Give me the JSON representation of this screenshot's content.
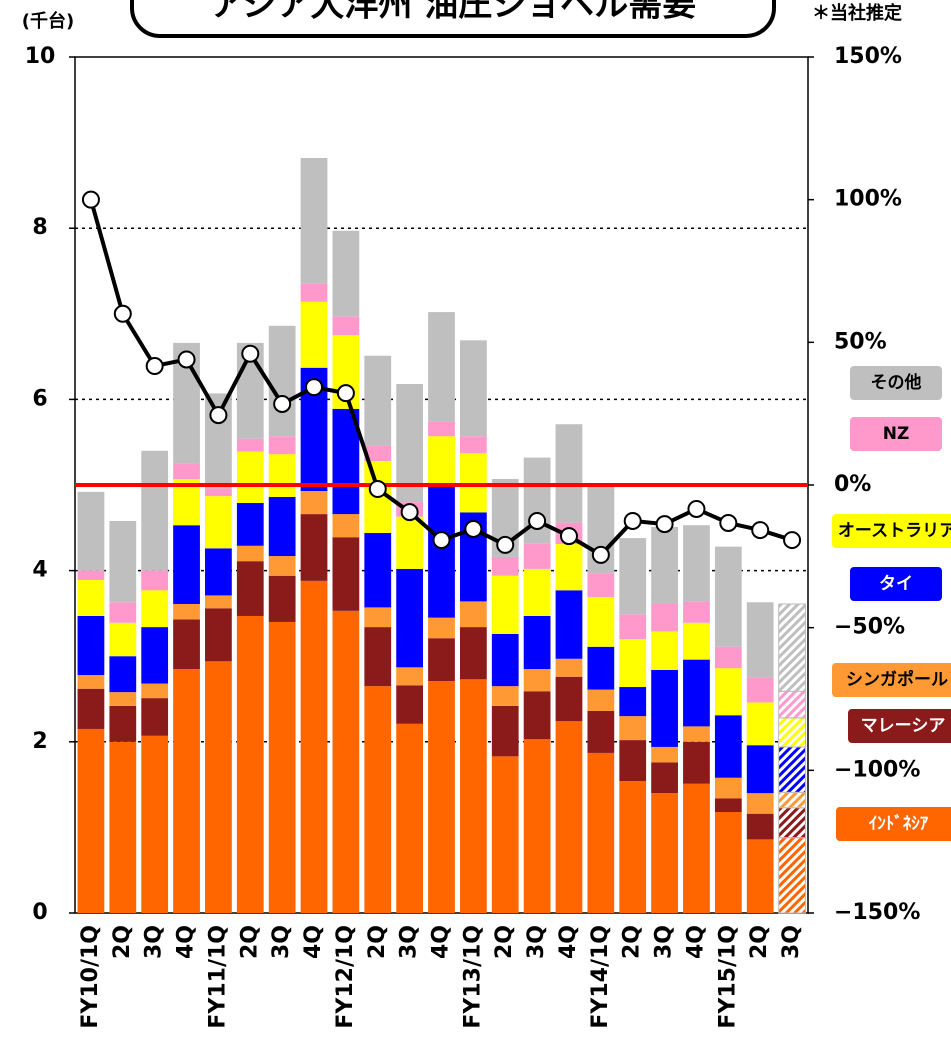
{
  "chart_data": {
    "type": "stacked_bar_line",
    "title": "アジア大洋州 油圧ショベル需要",
    "y_unit_label": "(千台)",
    "note": "＊当社推定",
    "categories": [
      "FY10/1Q",
      "2Q",
      "3Q",
      "4Q",
      "FY11/1Q",
      "2Q",
      "3Q",
      "4Q",
      "FY12/1Q",
      "2Q",
      "3Q",
      "4Q",
      "FY13/1Q",
      "2Q",
      "3Q",
      "4Q",
      "FY14/1Q",
      "2Q",
      "3Q",
      "4Q",
      "FY15/1Q",
      "2Q",
      "3Q"
    ],
    "series": [
      {
        "name": "ｲﾝﾄﾞﾈｼｱ",
        "color": "#ff6600",
        "values": [
          2.15,
          2.0,
          2.07,
          2.85,
          2.94,
          3.47,
          3.4,
          3.88,
          3.53,
          2.65,
          2.21,
          2.71,
          2.73,
          1.83,
          2.03,
          2.24,
          1.87,
          1.54,
          1.4,
          1.51,
          1.18,
          0.86,
          0.88
        ]
      },
      {
        "name": "マレーシア",
        "color": "#8b1a1a",
        "values": [
          0.47,
          0.42,
          0.44,
          0.58,
          0.62,
          0.64,
          0.54,
          0.78,
          0.86,
          0.69,
          0.45,
          0.5,
          0.61,
          0.59,
          0.56,
          0.52,
          0.49,
          0.48,
          0.36,
          0.49,
          0.16,
          0.3,
          0.35
        ]
      },
      {
        "name": "シンガポール",
        "color": "#ff9933",
        "values": [
          0.16,
          0.16,
          0.17,
          0.18,
          0.15,
          0.18,
          0.23,
          0.27,
          0.27,
          0.23,
          0.21,
          0.24,
          0.3,
          0.23,
          0.26,
          0.21,
          0.25,
          0.28,
          0.18,
          0.18,
          0.24,
          0.24,
          0.18
        ]
      },
      {
        "name": "タイ",
        "color": "#0000ff",
        "values": [
          0.69,
          0.42,
          0.66,
          0.92,
          0.55,
          0.5,
          0.69,
          1.44,
          1.23,
          0.87,
          1.15,
          1.53,
          1.04,
          0.61,
          0.62,
          0.8,
          0.5,
          0.34,
          0.9,
          0.78,
          0.73,
          0.56,
          0.53
        ]
      },
      {
        "name": "オーストラリア",
        "color": "#ffff00",
        "values": [
          0.42,
          0.39,
          0.43,
          0.54,
          0.61,
          0.6,
          0.5,
          0.77,
          0.86,
          0.84,
          0.61,
          0.59,
          0.69,
          0.68,
          0.55,
          0.54,
          0.58,
          0.56,
          0.45,
          0.43,
          0.55,
          0.5,
          0.34
        ]
      },
      {
        "name": "NZ",
        "color": "#ff99cc",
        "values": [
          0.11,
          0.24,
          0.23,
          0.18,
          0.09,
          0.15,
          0.21,
          0.21,
          0.22,
          0.18,
          0.17,
          0.17,
          0.2,
          0.22,
          0.3,
          0.25,
          0.28,
          0.29,
          0.32,
          0.25,
          0.25,
          0.29,
          0.31
        ]
      },
      {
        "name": "その他",
        "color": "#bfbfbf",
        "values": [
          0.92,
          0.95,
          1.4,
          1.41,
          1.11,
          1.12,
          1.29,
          1.47,
          1.0,
          1.05,
          1.38,
          1.28,
          1.12,
          0.91,
          1.0,
          1.15,
          1.05,
          0.89,
          0.9,
          0.89,
          1.17,
          0.88,
          1.02
        ]
      }
    ],
    "line": {
      "color": "#000000",
      "axis": "y2",
      "values": [
        100,
        60,
        41.7,
        44,
        24.5,
        46,
        28.4,
        34.3,
        32.2,
        -1.4,
        -9.5,
        -19.3,
        -15.4,
        -21,
        -12.6,
        -17.9,
        -24.5,
        -12.6,
        -13.7,
        -8.4,
        -13.3,
        -15.8,
        -19.3
      ]
    },
    "reference_line": {
      "axis": "y2",
      "value": 0,
      "color": "#ff0000"
    },
    "hatched_last": true,
    "ylim": [
      0,
      10
    ],
    "yticks": [
      0,
      2,
      4,
      6,
      8,
      10
    ],
    "y2lim": [
      -150,
      150
    ],
    "y2ticks": [
      {
        "value": -150,
        "label": "−150%"
      },
      {
        "value": -100,
        "label": "−100%"
      },
      {
        "value": -50,
        "label": "−50%"
      },
      {
        "value": 0,
        "label": "0%"
      },
      {
        "value": 50,
        "label": "50%"
      },
      {
        "value": 100,
        "label": "100%"
      },
      {
        "value": 150,
        "label": "150%"
      }
    ],
    "grid": true
  }
}
